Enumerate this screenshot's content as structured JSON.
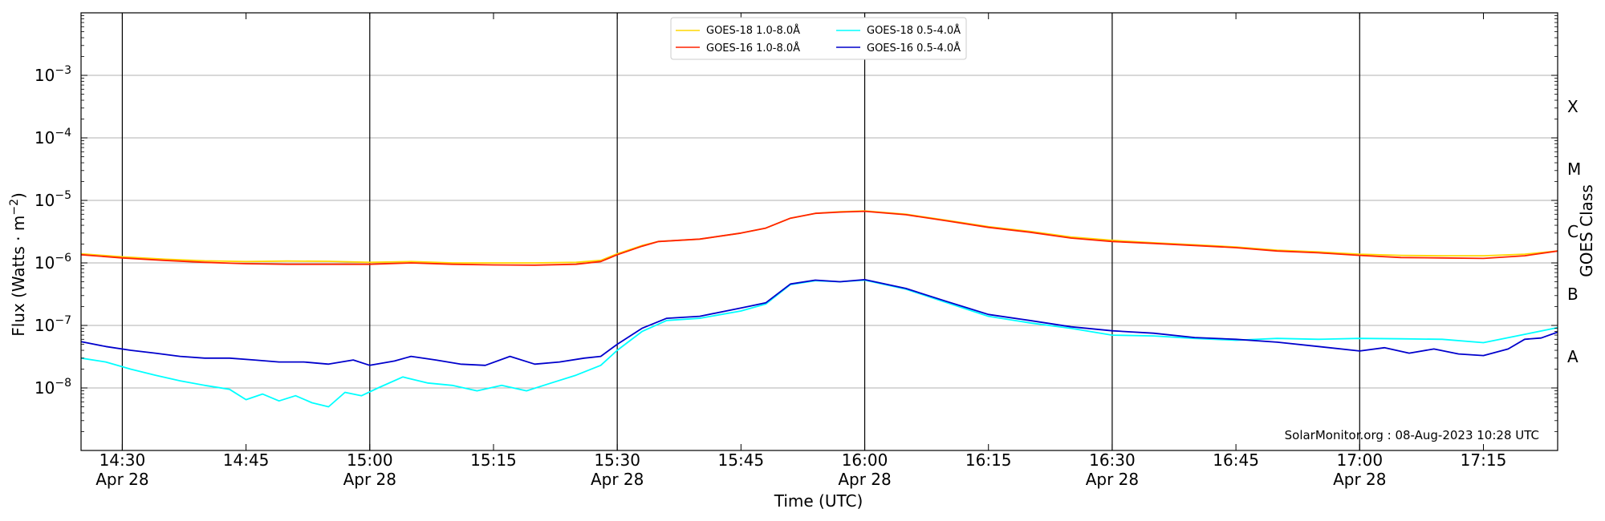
{
  "chart_data": {
    "type": "line",
    "xlabel": "Time (UTC)",
    "ylabel_main": "Flux (Watts · m",
    "ylabel_sup": "−2",
    "ylabel_close": ")",
    "right_axis_label": "GOES Class",
    "credit": "SolarMonitor.org : 08-Aug-2023 10:28 UTC",
    "yscale": "log",
    "ylim": [
      1e-09,
      0.01
    ],
    "xlim": [
      "14:25",
      "17:24"
    ],
    "grid": "horizontal",
    "legend_position": "top-center",
    "x_ticks": [
      {
        "t": "14:30",
        "label": "14:30",
        "date": "Apr 28",
        "vline": true
      },
      {
        "t": "14:45",
        "label": "14:45",
        "date": "",
        "vline": false
      },
      {
        "t": "15:00",
        "label": "15:00",
        "date": "Apr 28",
        "vline": true
      },
      {
        "t": "15:15",
        "label": "15:15",
        "date": "",
        "vline": false
      },
      {
        "t": "15:30",
        "label": "15:30",
        "date": "Apr 28",
        "vline": true
      },
      {
        "t": "15:45",
        "label": "15:45",
        "date": "",
        "vline": false
      },
      {
        "t": "16:00",
        "label": "16:00",
        "date": "Apr 28",
        "vline": true
      },
      {
        "t": "16:15",
        "label": "16:15",
        "date": "",
        "vline": false
      },
      {
        "t": "16:30",
        "label": "16:30",
        "date": "Apr 28",
        "vline": true
      },
      {
        "t": "16:45",
        "label": "16:45",
        "date": "",
        "vline": false
      },
      {
        "t": "17:00",
        "label": "17:00",
        "date": "Apr 28",
        "vline": true
      },
      {
        "t": "17:15",
        "label": "17:15",
        "date": "",
        "vline": false
      }
    ],
    "y_ticks": [
      {
        "exp": -8,
        "base": "10",
        "sup": "−8"
      },
      {
        "exp": -7,
        "base": "10",
        "sup": "−7"
      },
      {
        "exp": -6,
        "base": "10",
        "sup": "−6"
      },
      {
        "exp": -5,
        "base": "10",
        "sup": "−5"
      },
      {
        "exp": -4,
        "base": "10",
        "sup": "−4"
      },
      {
        "exp": -3,
        "base": "10",
        "sup": "−3"
      }
    ],
    "goes_classes": [
      {
        "label": "A",
        "level": 3.16e-08
      },
      {
        "label": "B",
        "level": 3.16e-07
      },
      {
        "label": "C",
        "level": 3.16e-06
      },
      {
        "label": "M",
        "level": 3.16e-05
      },
      {
        "label": "X",
        "level": 0.000316
      }
    ],
    "series": [
      {
        "name": "GOES-18 1.0-8.0Å",
        "color": "#ffd700",
        "points": [
          [
            "14:25",
            1.4e-06
          ],
          [
            "14:30",
            1.25e-06
          ],
          [
            "14:35",
            1.15e-06
          ],
          [
            "14:40",
            1.08e-06
          ],
          [
            "14:45",
            1.05e-06
          ],
          [
            "14:50",
            1.07e-06
          ],
          [
            "14:55",
            1.06e-06
          ],
          [
            "15:00",
            1.02e-06
          ],
          [
            "15:05",
            1.05e-06
          ],
          [
            "15:10",
            1e-06
          ],
          [
            "15:15",
            1e-06
          ],
          [
            "15:20",
            1e-06
          ],
          [
            "15:25",
            1.02e-06
          ],
          [
            "15:28",
            1.1e-06
          ],
          [
            "15:30",
            1.4e-06
          ],
          [
            "15:33",
            1.9e-06
          ],
          [
            "15:35",
            2.2e-06
          ],
          [
            "15:40",
            2.4e-06
          ],
          [
            "15:45",
            3e-06
          ],
          [
            "15:48",
            3.6e-06
          ],
          [
            "15:51",
            5.2e-06
          ],
          [
            "15:54",
            6.2e-06
          ],
          [
            "15:57",
            6.6e-06
          ],
          [
            "16:00",
            6.8e-06
          ],
          [
            "16:05",
            6e-06
          ],
          [
            "16:10",
            4.8e-06
          ],
          [
            "16:15",
            3.8e-06
          ],
          [
            "16:20",
            3.2e-06
          ],
          [
            "16:25",
            2.6e-06
          ],
          [
            "16:30",
            2.3e-06
          ],
          [
            "16:35",
            2.1e-06
          ],
          [
            "16:40",
            1.95e-06
          ],
          [
            "16:45",
            1.8e-06
          ],
          [
            "16:50",
            1.6e-06
          ],
          [
            "16:55",
            1.5e-06
          ],
          [
            "17:00",
            1.38e-06
          ],
          [
            "17:05",
            1.32e-06
          ],
          [
            "17:10",
            1.3e-06
          ],
          [
            "17:15",
            1.3e-06
          ],
          [
            "17:20",
            1.38e-06
          ],
          [
            "17:24",
            1.55e-06
          ]
        ]
      },
      {
        "name": "GOES-16 1.0-8.0Å",
        "color": "#ff2200",
        "points": [
          [
            "14:25",
            1.35e-06
          ],
          [
            "14:30",
            1.2e-06
          ],
          [
            "14:35",
            1.1e-06
          ],
          [
            "14:40",
            1.02e-06
          ],
          [
            "14:45",
            9.7e-07
          ],
          [
            "14:50",
            9.5e-07
          ],
          [
            "14:55",
            9.5e-07
          ],
          [
            "15:00",
            9.5e-07
          ],
          [
            "15:05",
            1e-06
          ],
          [
            "15:10",
            9.5e-07
          ],
          [
            "15:15",
            9.3e-07
          ],
          [
            "15:20",
            9.2e-07
          ],
          [
            "15:25",
            9.5e-07
          ],
          [
            "15:28",
            1.05e-06
          ],
          [
            "15:30",
            1.35e-06
          ],
          [
            "15:33",
            1.85e-06
          ],
          [
            "15:35",
            2.2e-06
          ],
          [
            "15:40",
            2.4e-06
          ],
          [
            "15:45",
            3e-06
          ],
          [
            "15:48",
            3.6e-06
          ],
          [
            "15:51",
            5.2e-06
          ],
          [
            "15:54",
            6.2e-06
          ],
          [
            "15:57",
            6.5e-06
          ],
          [
            "16:00",
            6.7e-06
          ],
          [
            "16:05",
            5.9e-06
          ],
          [
            "16:10",
            4.7e-06
          ],
          [
            "16:15",
            3.7e-06
          ],
          [
            "16:20",
            3.1e-06
          ],
          [
            "16:25",
            2.5e-06
          ],
          [
            "16:30",
            2.2e-06
          ],
          [
            "16:35",
            2.05e-06
          ],
          [
            "16:40",
            1.9e-06
          ],
          [
            "16:45",
            1.75e-06
          ],
          [
            "16:50",
            1.55e-06
          ],
          [
            "16:55",
            1.45e-06
          ],
          [
            "17:00",
            1.32e-06
          ],
          [
            "17:05",
            1.22e-06
          ],
          [
            "17:10",
            1.2e-06
          ],
          [
            "17:15",
            1.18e-06
          ],
          [
            "17:20",
            1.3e-06
          ],
          [
            "17:24",
            1.55e-06
          ]
        ]
      },
      {
        "name": "GOES-18 0.5-4.0Å",
        "color": "#00ffff",
        "points": [
          [
            "14:25",
            3e-08
          ],
          [
            "14:28",
            2.6e-08
          ],
          [
            "14:31",
            2e-08
          ],
          [
            "14:34",
            1.6e-08
          ],
          [
            "14:37",
            1.3e-08
          ],
          [
            "14:40",
            1.1e-08
          ],
          [
            "14:43",
            9.5e-09
          ],
          [
            "14:45",
            6.5e-09
          ],
          [
            "14:47",
            8e-09
          ],
          [
            "14:49",
            6.2e-09
          ],
          [
            "14:51",
            7.5e-09
          ],
          [
            "14:53",
            5.8e-09
          ],
          [
            "14:55",
            5e-09
          ],
          [
            "14:57",
            8.5e-09
          ],
          [
            "14:59",
            7.5e-09
          ],
          [
            "15:01",
            1e-08
          ],
          [
            "15:04",
            1.5e-08
          ],
          [
            "15:07",
            1.2e-08
          ],
          [
            "15:10",
            1.1e-08
          ],
          [
            "15:13",
            9e-09
          ],
          [
            "15:16",
            1.1e-08
          ],
          [
            "15:19",
            9e-09
          ],
          [
            "15:22",
            1.2e-08
          ],
          [
            "15:25",
            1.6e-08
          ],
          [
            "15:28",
            2.3e-08
          ],
          [
            "15:30",
            4e-08
          ],
          [
            "15:33",
            8e-08
          ],
          [
            "15:36",
            1.2e-07
          ],
          [
            "15:40",
            1.3e-07
          ],
          [
            "15:45",
            1.7e-07
          ],
          [
            "15:48",
            2.2e-07
          ],
          [
            "15:51",
            4.5e-07
          ],
          [
            "15:54",
            5.2e-07
          ],
          [
            "15:57",
            5e-07
          ],
          [
            "16:00",
            5.3e-07
          ],
          [
            "16:05",
            3.8e-07
          ],
          [
            "16:10",
            2.3e-07
          ],
          [
            "16:15",
            1.4e-07
          ],
          [
            "16:20",
            1.1e-07
          ],
          [
            "16:25",
            9e-08
          ],
          [
            "16:30",
            7e-08
          ],
          [
            "16:35",
            6.8e-08
          ],
          [
            "16:40",
            6.2e-08
          ],
          [
            "16:45",
            5.8e-08
          ],
          [
            "16:50",
            6.2e-08
          ],
          [
            "16:55",
            6e-08
          ],
          [
            "17:00",
            6.2e-08
          ],
          [
            "17:05",
            6.1e-08
          ],
          [
            "17:10",
            6e-08
          ],
          [
            "17:15",
            5.3e-08
          ],
          [
            "17:20",
            7.2e-08
          ],
          [
            "17:24",
            9.2e-08
          ]
        ]
      },
      {
        "name": "GOES-16 0.5-4.0Å",
        "color": "#0000cc",
        "points": [
          [
            "14:25",
            5.5e-08
          ],
          [
            "14:28",
            4.6e-08
          ],
          [
            "14:31",
            4e-08
          ],
          [
            "14:34",
            3.6e-08
          ],
          [
            "14:37",
            3.2e-08
          ],
          [
            "14:40",
            3e-08
          ],
          [
            "14:43",
            3e-08
          ],
          [
            "14:46",
            2.8e-08
          ],
          [
            "14:49",
            2.6e-08
          ],
          [
            "14:52",
            2.6e-08
          ],
          [
            "14:55",
            2.4e-08
          ],
          [
            "14:58",
            2.8e-08
          ],
          [
            "15:00",
            2.3e-08
          ],
          [
            "15:03",
            2.7e-08
          ],
          [
            "15:05",
            3.2e-08
          ],
          [
            "15:08",
            2.8e-08
          ],
          [
            "15:11",
            2.4e-08
          ],
          [
            "15:14",
            2.3e-08
          ],
          [
            "15:17",
            3.2e-08
          ],
          [
            "15:20",
            2.4e-08
          ],
          [
            "15:23",
            2.6e-08
          ],
          [
            "15:26",
            3e-08
          ],
          [
            "15:28",
            3.2e-08
          ],
          [
            "15:30",
            5e-08
          ],
          [
            "15:33",
            9e-08
          ],
          [
            "15:36",
            1.3e-07
          ],
          [
            "15:40",
            1.4e-07
          ],
          [
            "15:45",
            1.9e-07
          ],
          [
            "15:48",
            2.3e-07
          ],
          [
            "15:51",
            4.6e-07
          ],
          [
            "15:54",
            5.3e-07
          ],
          [
            "15:57",
            5e-07
          ],
          [
            "16:00",
            5.4e-07
          ],
          [
            "16:05",
            3.9e-07
          ],
          [
            "16:10",
            2.4e-07
          ],
          [
            "16:15",
            1.5e-07
          ],
          [
            "16:20",
            1.2e-07
          ],
          [
            "16:25",
            9.5e-08
          ],
          [
            "16:30",
            8.2e-08
          ],
          [
            "16:35",
            7.5e-08
          ],
          [
            "16:40",
            6.4e-08
          ],
          [
            "16:45",
            6e-08
          ],
          [
            "16:50",
            5.4e-08
          ],
          [
            "16:55",
            4.6e-08
          ],
          [
            "17:00",
            3.9e-08
          ],
          [
            "17:03",
            4.4e-08
          ],
          [
            "17:06",
            3.6e-08
          ],
          [
            "17:09",
            4.2e-08
          ],
          [
            "17:12",
            3.5e-08
          ],
          [
            "17:15",
            3.3e-08
          ],
          [
            "17:18",
            4.2e-08
          ],
          [
            "17:20",
            6e-08
          ],
          [
            "17:22",
            6.3e-08
          ],
          [
            "17:24",
            7.8e-08
          ]
        ]
      }
    ]
  }
}
